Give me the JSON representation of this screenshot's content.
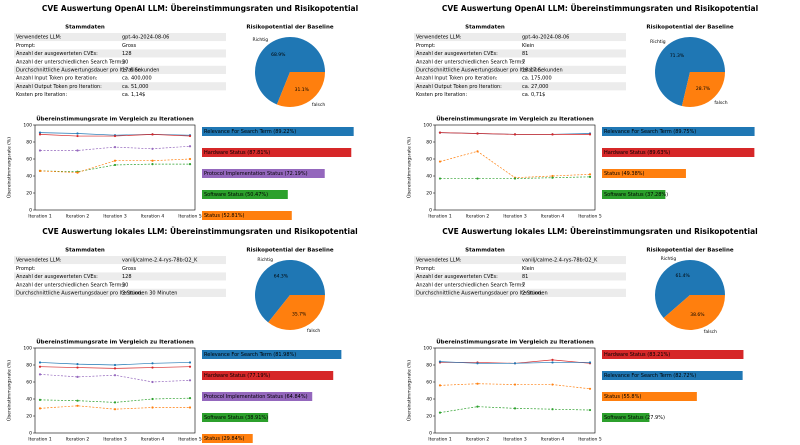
{
  "panels": [
    {
      "title": "CVE Auswertung OpenAI LLM: Übereinstimmungsraten und Risikopotential",
      "table": {
        "title": "Stammdaten",
        "rows": [
          [
            "Verwendetes LLM:",
            "gpt-4o-2024-08-06"
          ],
          [
            "Prompt:",
            "Gross"
          ],
          [
            "Anzahl der ausgewerteten CVEs:",
            "128"
          ],
          [
            "Anzahl der unterschiedlichen Search Terms:",
            "30"
          ],
          [
            "Durchschnittliche Auswertungsdauer pro Iteration:",
            "17.6 Sekunden"
          ],
          [
            "Anzahl Input Token pro Iteration:",
            "ca. 400,000"
          ],
          [
            "Anzahl Output Token pro Iteration:",
            "ca. 51,000"
          ],
          [
            "Kosten pro Iteration:",
            "ca. 1,14$"
          ]
        ]
      },
      "pie": {
        "title": "Risikopotential der Baseline",
        "labels": [
          "Richtig",
          "falsch"
        ],
        "values": [
          68.9,
          31.1
        ],
        "value_labels": [
          "68.9%",
          "31.1%"
        ],
        "colors": [
          "#1f77b4",
          "#ff7f0e"
        ]
      },
      "line": {
        "title": "Übereinstimmungsrate im Vergleich zu Iterationen",
        "ylabel": "Übereinstimmungsrate (%)",
        "categories": [
          "Iteration 1",
          "Iteration 2",
          "Iteration 3",
          "Iteration 4",
          "Iteration 5"
        ],
        "ylim": [
          0,
          100
        ],
        "yticks": [
          0,
          20,
          40,
          60,
          80,
          100
        ],
        "series": [
          {
            "legend": "Relevance For Search Term (89.22%)",
            "mean": 89.22,
            "color": "#1f77b4",
            "dashed": false,
            "values": [
              91,
              90,
              88,
              89,
              88
            ]
          },
          {
            "legend": "Hardware Status (87.81%)",
            "mean": 87.81,
            "color": "#d62728",
            "dashed": false,
            "values": [
              89,
              87,
              87,
              89,
              87
            ]
          },
          {
            "legend": "Protocol Implementation Status (72.19%)",
            "mean": 72.19,
            "color": "#9467bd",
            "dashed": true,
            "values": [
              70,
              70,
              74,
              72,
              75
            ]
          },
          {
            "legend": "Software Status (50.47%)",
            "mean": 50.47,
            "color": "#2ca02c",
            "dashed": true,
            "values": [
              46,
              45,
              53,
              54,
              54
            ]
          },
          {
            "legend": "Status (52.81%)",
            "mean": 52.81,
            "color": "#ff7f0e",
            "dashed": true,
            "values": [
              46,
              44,
              58,
              58,
              60
            ]
          }
        ]
      }
    },
    {
      "title": "CVE Auswertung OpenAI LLM: Übereinstimmungsraten und Risikopotential",
      "table": {
        "title": "Stammdaten",
        "rows": [
          [
            "Verwendetes LLM:",
            "gpt-4o-2024-08-06"
          ],
          [
            "Prompt:",
            "Klein"
          ],
          [
            "Anzahl der ausgewerteten CVEs:",
            "81"
          ],
          [
            "Anzahl der unterschiedlichen Search Terms:",
            "7"
          ],
          [
            "Durchschnittliche Auswertungsdauer pro Iteration:",
            "18.17 Sekunden"
          ],
          [
            "Anzahl Input Token pro Iteration:",
            "ca. 175,000"
          ],
          [
            "Anzahl Output Token pro Iteration:",
            "ca. 27,000"
          ],
          [
            "Kosten pro Iteration:",
            "ca. 0,71$"
          ]
        ]
      },
      "pie": {
        "title": "Risikopotential der Baseline",
        "labels": [
          "Richtig",
          "falsch"
        ],
        "values": [
          71.3,
          28.7
        ],
        "value_labels": [
          "71.3%",
          "28.7%"
        ],
        "colors": [
          "#1f77b4",
          "#ff7f0e"
        ]
      },
      "line": {
        "title": "Übereinstimmungsrate im Vergleich zu Iterationen",
        "ylabel": "Übereinstimmungsrate (%)",
        "categories": [
          "Iteration 1",
          "Iteration 2",
          "Iteration 3",
          "Iteration 4",
          "Iteration 5"
        ],
        "ylim": [
          0,
          100
        ],
        "yticks": [
          0,
          20,
          40,
          60,
          80,
          100
        ],
        "series": [
          {
            "legend": "Relevance For Search Term (89.75%)",
            "mean": 89.75,
            "color": "#1f77b4",
            "dashed": false,
            "values": [
              91,
              90,
              89,
              89,
              90
            ]
          },
          {
            "legend": "Hardware Status (89.63%)",
            "mean": 89.63,
            "color": "#d62728",
            "dashed": false,
            "values": [
              91,
              90,
              89,
              89,
              89
            ]
          },
          {
            "legend": "Status (49.38%)",
            "mean": 49.38,
            "color": "#ff7f0e",
            "dashed": true,
            "values": [
              57,
              69,
              38,
              40,
              42
            ]
          },
          {
            "legend": "Software Status (37.28%)",
            "mean": 37.28,
            "color": "#2ca02c",
            "dashed": true,
            "values": [
              37,
              37,
              37,
              38,
              39
            ]
          }
        ]
      }
    },
    {
      "title": "CVE Auswertung lokales LLM: Übereinstimmungsraten und Risikopotential",
      "table": {
        "title": "Stammdaten",
        "rows": [
          [
            "Verwendetes LLM:",
            "vanilj/calme-2.4-rys-78b:Q2_K"
          ],
          [
            "Prompt:",
            "Gross"
          ],
          [
            "Anzahl der ausgewerteten CVEs:",
            "128"
          ],
          [
            "Anzahl der unterschiedlichen Search Terms:",
            "30"
          ],
          [
            "Durchschnittliche Auswertungsdauer pro Iteration:",
            "3 Stunden 30 Minuten"
          ]
        ]
      },
      "pie": {
        "title": "Risikopotential der Baseline",
        "labels": [
          "Richtig",
          "falsch"
        ],
        "values": [
          64.3,
          35.7
        ],
        "value_labels": [
          "64.3%",
          "35.7%"
        ],
        "colors": [
          "#1f77b4",
          "#ff7f0e"
        ]
      },
      "line": {
        "title": "Übereinstimmungsrate im Vergleich zu Iterationen",
        "ylabel": "Übereinstimmungsrate (%)",
        "categories": [
          "Iteration 1",
          "Iteration 2",
          "Iteration 3",
          "Iteration 4",
          "Iteration 5"
        ],
        "ylim": [
          0,
          100
        ],
        "yticks": [
          0,
          20,
          40,
          60,
          80,
          100
        ],
        "series": [
          {
            "legend": "Relevance For Search Term (81.98%)",
            "mean": 81.98,
            "color": "#1f77b4",
            "dashed": false,
            "values": [
              83,
              81,
              80,
              82,
              83
            ]
          },
          {
            "legend": "Hardware Status (77.19%)",
            "mean": 77.19,
            "color": "#d62728",
            "dashed": false,
            "values": [
              78,
              77,
              76,
              77,
              78
            ]
          },
          {
            "legend": "Protocol Implementation Status (64.84%)",
            "mean": 64.84,
            "color": "#9467bd",
            "dashed": true,
            "values": [
              69,
              66,
              68,
              60,
              62
            ]
          },
          {
            "legend": "Software Status (38.91%)",
            "mean": 38.91,
            "color": "#2ca02c",
            "dashed": true,
            "values": [
              39,
              38,
              36,
              40,
              41
            ]
          },
          {
            "legend": "Status (29.84%)",
            "mean": 29.84,
            "color": "#ff7f0e",
            "dashed": true,
            "values": [
              29,
              32,
              28,
              30,
              30
            ]
          }
        ]
      }
    },
    {
      "title": "CVE Auswertung lokales LLM: Übereinstimmungsraten und Risikopotential",
      "table": {
        "title": "Stammdaten",
        "rows": [
          [
            "Verwendetes LLM:",
            "vanilj/calme-2.4-rys-78b:Q2_K"
          ],
          [
            "Prompt:",
            "Klein"
          ],
          [
            "Anzahl der ausgewerteten CVEs:",
            "81"
          ],
          [
            "Anzahl der unterschiedlichen Search Terms:",
            "7"
          ],
          [
            "Durchschnittliche Auswertungsdauer pro Iteration:",
            "2 Stunden"
          ]
        ]
      },
      "pie": {
        "title": "Risikopotential der Baseline",
        "labels": [
          "Richtig",
          "falsch"
        ],
        "values": [
          61.4,
          38.6
        ],
        "value_labels": [
          "61.4%",
          "38.6%"
        ],
        "colors": [
          "#1f77b4",
          "#ff7f0e"
        ]
      },
      "line": {
        "title": "Übereinstimmungsrate im Vergleich zu Iterationen",
        "ylabel": "Übereinstimmungsrate (%)",
        "categories": [
          "Iteration 1",
          "Iteration 2",
          "Iteration 3",
          "Iteration 4",
          "Iteration 5"
        ],
        "ylim": [
          0,
          100
        ],
        "yticks": [
          0,
          20,
          40,
          60,
          80,
          100
        ],
        "series": [
          {
            "legend": "Hardware Status (83.21%)",
            "mean": 83.21,
            "color": "#d62728",
            "dashed": false,
            "values": [
              83,
              83,
              82,
              86,
              82
            ]
          },
          {
            "legend": "Relevance For Search Term (82.72%)",
            "mean": 82.72,
            "color": "#1f77b4",
            "dashed": false,
            "values": [
              84,
              82,
              82,
              83,
              83
            ]
          },
          {
            "legend": "Status (55.8%)",
            "mean": 55.8,
            "color": "#ff7f0e",
            "dashed": true,
            "values": [
              56,
              58,
              57,
              57,
              52
            ]
          },
          {
            "legend": "Software Status (27.9%)",
            "mean": 27.9,
            "color": "#2ca02c",
            "dashed": true,
            "values": [
              24,
              31,
              29,
              28,
              27
            ]
          }
        ]
      }
    }
  ]
}
